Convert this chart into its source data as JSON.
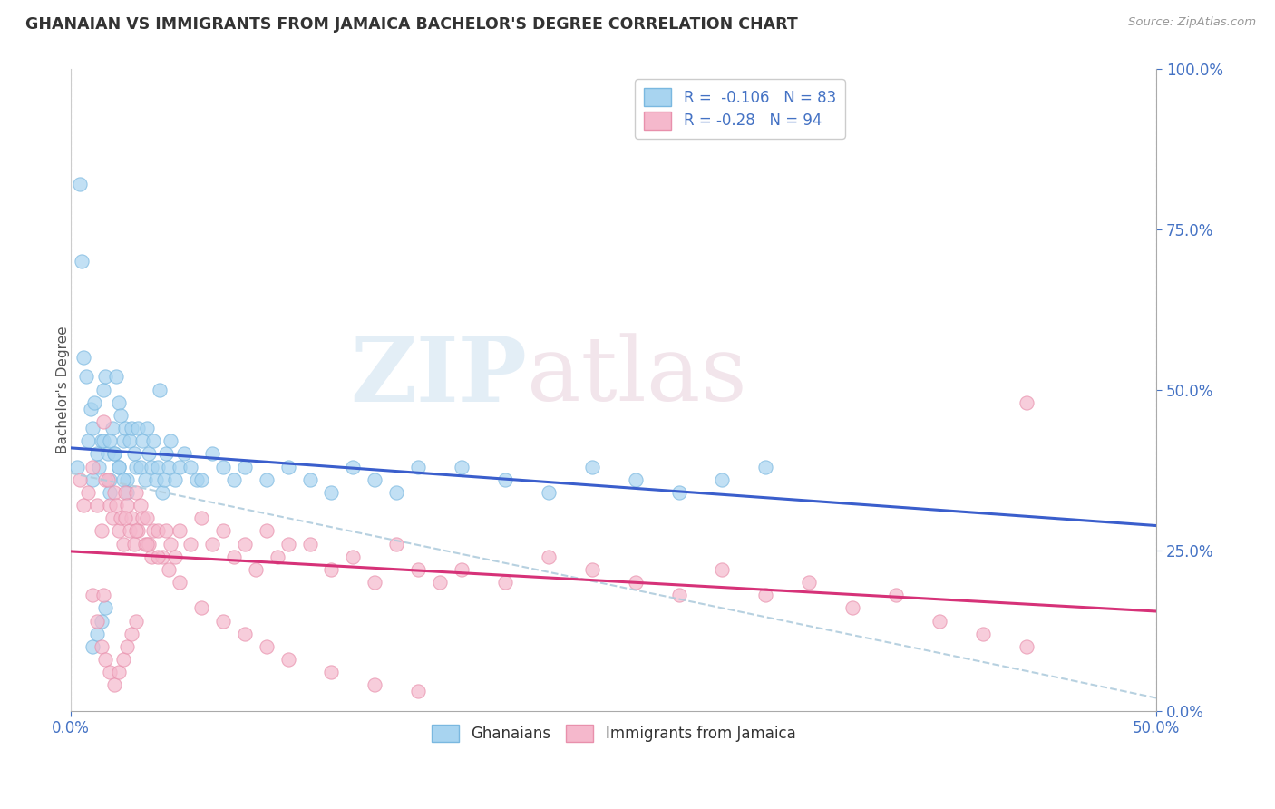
{
  "title": "GHANAIAN VS IMMIGRANTS FROM JAMAICA BACHELOR'S DEGREE CORRELATION CHART",
  "source_text": "Source: ZipAtlas.com",
  "ylabel": "Bachelor's Degree",
  "xlim": [
    0.0,
    0.5
  ],
  "ylim": [
    0.0,
    1.0
  ],
  "r_ghanaian": -0.106,
  "n_ghanaian": 83,
  "r_jamaica": -0.28,
  "n_jamaica": 94,
  "color_ghanaian_fill": "#a8d4f0",
  "color_ghanaian_edge": "#7ab8e0",
  "color_jamaica_fill": "#f5b8cc",
  "color_jamaica_edge": "#e890ac",
  "color_line_ghanaian": "#3a5ecc",
  "color_line_jamaica": "#d63278",
  "color_dashed": "#b0ccdd",
  "watermark_zip": "ZIP",
  "watermark_atlas": "atlas",
  "legend_text_color": "#4472c4",
  "legend_r_color": "#4472c4",
  "tick_color": "#4472c4",
  "ghanaian_x": [
    0.003,
    0.004,
    0.005,
    0.006,
    0.007,
    0.008,
    0.009,
    0.01,
    0.01,
    0.011,
    0.012,
    0.013,
    0.014,
    0.015,
    0.015,
    0.016,
    0.017,
    0.018,
    0.018,
    0.019,
    0.02,
    0.021,
    0.022,
    0.022,
    0.023,
    0.024,
    0.025,
    0.026,
    0.027,
    0.028,
    0.029,
    0.03,
    0.031,
    0.032,
    0.033,
    0.034,
    0.035,
    0.036,
    0.037,
    0.038,
    0.039,
    0.04,
    0.041,
    0.042,
    0.043,
    0.044,
    0.045,
    0.046,
    0.048,
    0.05,
    0.052,
    0.055,
    0.058,
    0.06,
    0.065,
    0.07,
    0.075,
    0.08,
    0.09,
    0.1,
    0.11,
    0.12,
    0.13,
    0.14,
    0.15,
    0.16,
    0.18,
    0.2,
    0.22,
    0.24,
    0.26,
    0.28,
    0.3,
    0.32,
    0.01,
    0.012,
    0.014,
    0.016,
    0.018,
    0.02,
    0.022,
    0.024,
    0.026
  ],
  "ghanaian_y": [
    0.38,
    0.82,
    0.7,
    0.55,
    0.52,
    0.42,
    0.47,
    0.36,
    0.44,
    0.48,
    0.4,
    0.38,
    0.42,
    0.5,
    0.42,
    0.52,
    0.4,
    0.36,
    0.34,
    0.44,
    0.4,
    0.52,
    0.48,
    0.38,
    0.46,
    0.42,
    0.44,
    0.36,
    0.42,
    0.44,
    0.4,
    0.38,
    0.44,
    0.38,
    0.42,
    0.36,
    0.44,
    0.4,
    0.38,
    0.42,
    0.36,
    0.38,
    0.5,
    0.34,
    0.36,
    0.4,
    0.38,
    0.42,
    0.36,
    0.38,
    0.4,
    0.38,
    0.36,
    0.36,
    0.4,
    0.38,
    0.36,
    0.38,
    0.36,
    0.38,
    0.36,
    0.34,
    0.38,
    0.36,
    0.34,
    0.38,
    0.38,
    0.36,
    0.34,
    0.38,
    0.36,
    0.34,
    0.36,
    0.38,
    0.1,
    0.12,
    0.14,
    0.16,
    0.42,
    0.4,
    0.38,
    0.36,
    0.34
  ],
  "jamaica_x": [
    0.004,
    0.006,
    0.008,
    0.01,
    0.012,
    0.014,
    0.015,
    0.016,
    0.017,
    0.018,
    0.019,
    0.02,
    0.021,
    0.022,
    0.023,
    0.024,
    0.025,
    0.026,
    0.027,
    0.028,
    0.029,
    0.03,
    0.031,
    0.032,
    0.033,
    0.034,
    0.035,
    0.036,
    0.037,
    0.038,
    0.04,
    0.042,
    0.044,
    0.046,
    0.048,
    0.05,
    0.055,
    0.06,
    0.065,
    0.07,
    0.075,
    0.08,
    0.085,
    0.09,
    0.095,
    0.1,
    0.11,
    0.12,
    0.13,
    0.14,
    0.15,
    0.16,
    0.17,
    0.18,
    0.2,
    0.22,
    0.24,
    0.26,
    0.28,
    0.3,
    0.32,
    0.34,
    0.36,
    0.38,
    0.4,
    0.42,
    0.44,
    0.01,
    0.012,
    0.014,
    0.016,
    0.018,
    0.02,
    0.022,
    0.024,
    0.026,
    0.028,
    0.03,
    0.025,
    0.03,
    0.035,
    0.04,
    0.045,
    0.05,
    0.06,
    0.07,
    0.08,
    0.09,
    0.1,
    0.12,
    0.14,
    0.16,
    0.44,
    0.015
  ],
  "jamaica_y": [
    0.36,
    0.32,
    0.34,
    0.38,
    0.32,
    0.28,
    0.45,
    0.36,
    0.36,
    0.32,
    0.3,
    0.34,
    0.32,
    0.28,
    0.3,
    0.26,
    0.34,
    0.32,
    0.28,
    0.3,
    0.26,
    0.34,
    0.28,
    0.32,
    0.3,
    0.26,
    0.3,
    0.26,
    0.24,
    0.28,
    0.28,
    0.24,
    0.28,
    0.26,
    0.24,
    0.28,
    0.26,
    0.3,
    0.26,
    0.28,
    0.24,
    0.26,
    0.22,
    0.28,
    0.24,
    0.26,
    0.26,
    0.22,
    0.24,
    0.2,
    0.26,
    0.22,
    0.2,
    0.22,
    0.2,
    0.24,
    0.22,
    0.2,
    0.18,
    0.22,
    0.18,
    0.2,
    0.16,
    0.18,
    0.14,
    0.12,
    0.1,
    0.18,
    0.14,
    0.1,
    0.08,
    0.06,
    0.04,
    0.06,
    0.08,
    0.1,
    0.12,
    0.14,
    0.3,
    0.28,
    0.26,
    0.24,
    0.22,
    0.2,
    0.16,
    0.14,
    0.12,
    0.1,
    0.08,
    0.06,
    0.04,
    0.03,
    0.48,
    0.18
  ]
}
